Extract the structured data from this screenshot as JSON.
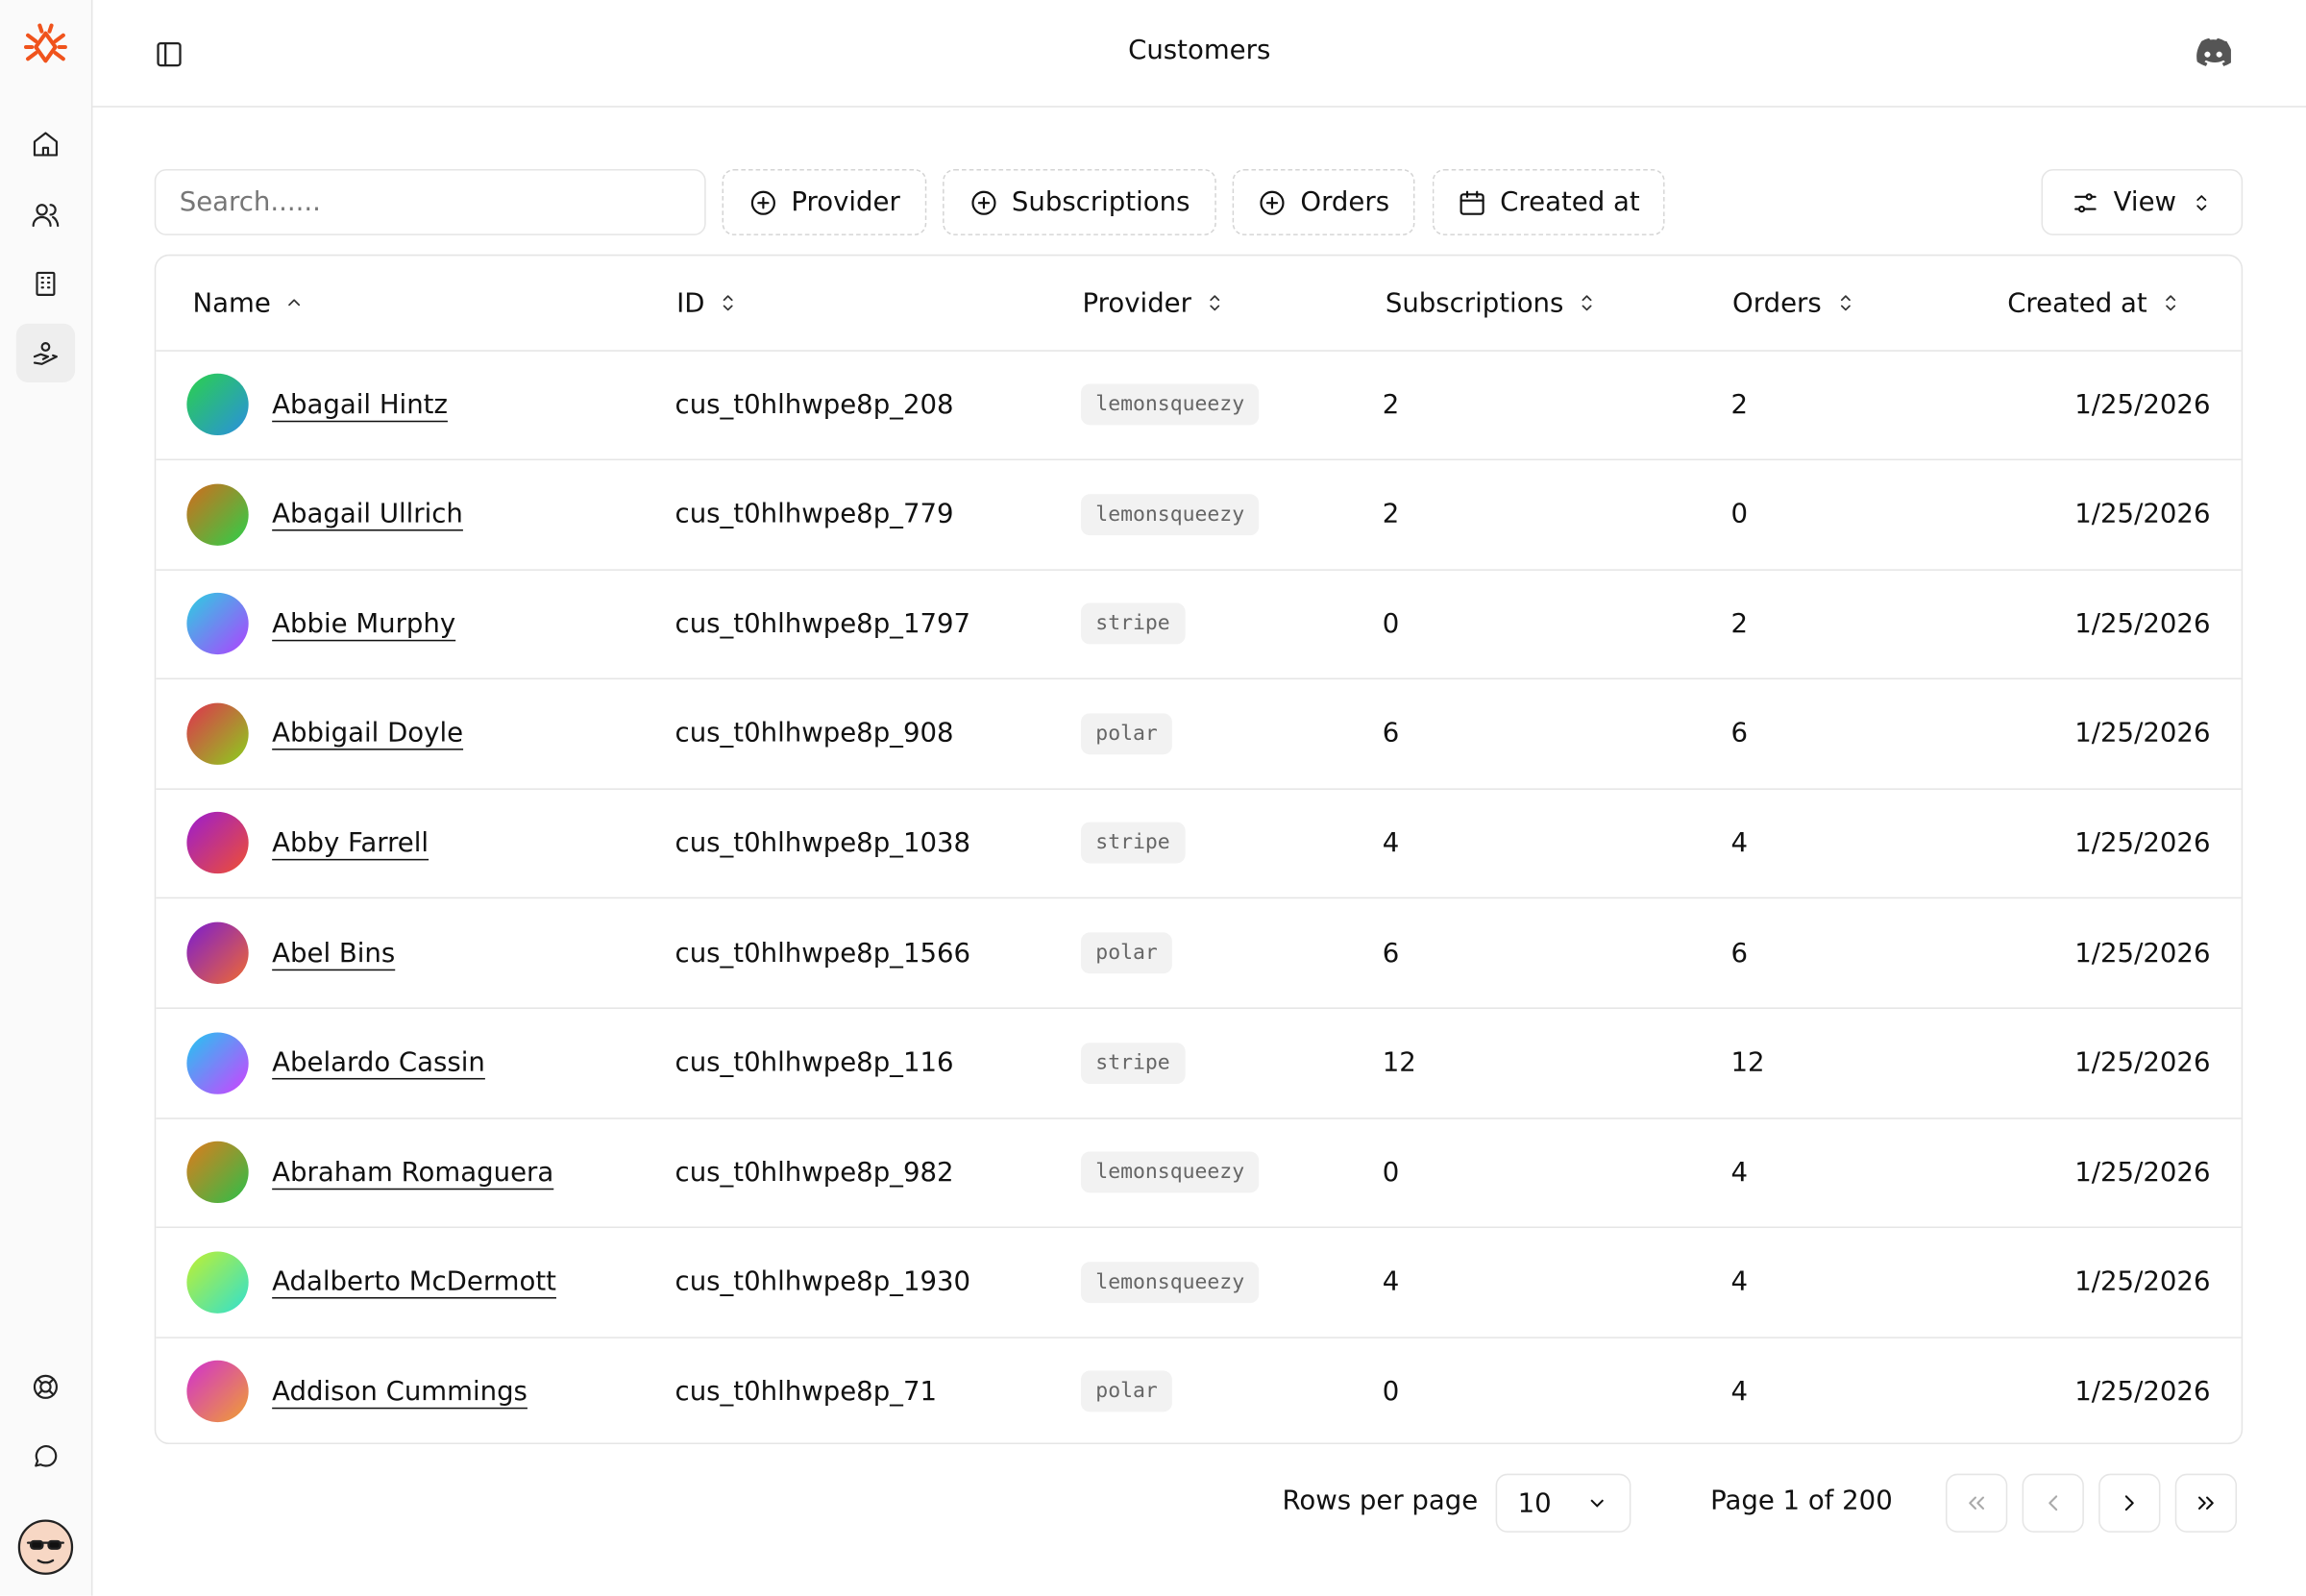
{
  "header": {
    "title": "Customers"
  },
  "toolbar": {
    "search_placeholder": "Search......",
    "filters": [
      "Provider",
      "Subscriptions",
      "Orders",
      "Created at"
    ],
    "view": "View"
  },
  "table": {
    "columns": [
      "Name",
      "ID",
      "Provider",
      "Subscriptions",
      "Orders",
      "Created at"
    ],
    "rows": [
      [
        "Abagail Hintz",
        "cus_t0hlhwpe8p_208",
        "lemonsqueezy",
        2,
        2,
        "1/25/2026"
      ],
      [
        "Abagail Ullrich",
        "cus_t0hlhwpe8p_779",
        "lemonsqueezy",
        2,
        0,
        "1/25/2026"
      ],
      [
        "Abbie Murphy",
        "cus_t0hlhwpe8p_1797",
        "stripe",
        0,
        2,
        "1/25/2026"
      ],
      [
        "Abbigail Doyle",
        "cus_t0hlhwpe8p_908",
        "polar",
        6,
        6,
        "1/25/2026"
      ],
      [
        "Abby Farrell",
        "cus_t0hlhwpe8p_1038",
        "stripe",
        4,
        4,
        "1/25/2026"
      ],
      [
        "Abel Bins",
        "cus_t0hlhwpe8p_1566",
        "polar",
        6,
        6,
        "1/25/2026"
      ],
      [
        "Abelardo Cassin",
        "cus_t0hlhwpe8p_116",
        "stripe",
        12,
        12,
        "1/25/2026"
      ],
      [
        "Abraham Romaguera",
        "cus_t0hlhwpe8p_982",
        "lemonsqueezy",
        0,
        4,
        "1/25/2026"
      ],
      [
        "Adalberto McDermott",
        "cus_t0hlhwpe8p_1930",
        "lemonsqueezy",
        4,
        4,
        "1/25/2026"
      ],
      [
        "Addison Cummings",
        "cus_t0hlhwpe8p_71",
        "polar",
        0,
        4,
        "1/25/2026"
      ]
    ]
  },
  "pagination": {
    "rows_per_page_label": "Rows per page",
    "rows_per_page": 10,
    "page_info": "Page 1 of 200"
  }
}
